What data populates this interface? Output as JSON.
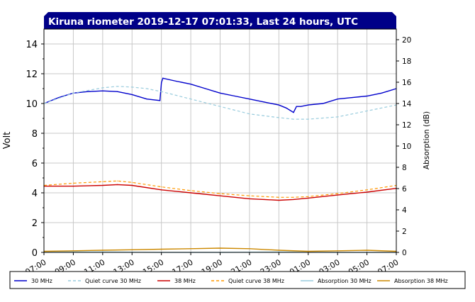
{
  "chart_data": {
    "type": "line",
    "title": "Kiruna riometer 2019-12-17 07:01:33, Last 24 hours, UTC",
    "ylabel_left": "Volt",
    "ylabel_right": "Absorption (dB)",
    "ylim_left": [
      0,
      15
    ],
    "ylim_right": [
      0,
      21
    ],
    "yticks_left": [
      "0",
      "2",
      "4",
      "6",
      "8",
      "10",
      "12",
      "14"
    ],
    "yticks_right": [
      "0",
      "2",
      "4",
      "6",
      "8",
      "10",
      "12",
      "14",
      "16",
      "18",
      "20"
    ],
    "xticks": [
      "07:00",
      "09:00",
      "11:00",
      "13:00",
      "15:00",
      "17:00",
      "19:00",
      "21:00",
      "23:00",
      "01:00",
      "03:00",
      "05:00",
      "07:00"
    ],
    "x_hours_since_start_range": [
      0,
      24
    ],
    "grid": true,
    "legend_position": "bottom",
    "series": [
      {
        "name": "30 MHz",
        "color": "#0000cc",
        "dash": "solid",
        "axis": "left",
        "x": [
          0,
          1,
          2,
          3,
          4,
          5,
          6,
          7,
          7.9,
          8.0,
          8.1,
          9,
          10,
          11,
          12,
          13,
          14,
          15,
          16,
          16.5,
          17,
          17.2,
          17.5,
          18,
          19,
          20,
          21,
          22,
          23,
          24
        ],
        "y": [
          10.0,
          10.4,
          10.7,
          10.8,
          10.85,
          10.8,
          10.6,
          10.3,
          10.2,
          11.4,
          11.7,
          11.5,
          11.3,
          11.0,
          10.7,
          10.5,
          10.3,
          10.1,
          9.9,
          9.7,
          9.4,
          9.8,
          9.8,
          9.9,
          10.0,
          10.3,
          10.4,
          10.5,
          10.7,
          11.0
        ]
      },
      {
        "name": "Quiet curve 30 MHz",
        "color": "#99ccdd",
        "dash": "dashed",
        "axis": "left",
        "x": [
          0,
          2,
          4,
          5,
          6,
          7,
          8,
          10,
          12,
          14,
          16,
          17,
          18,
          20,
          22,
          24
        ],
        "y": [
          10.0,
          10.7,
          11.05,
          11.15,
          11.1,
          11.0,
          10.8,
          10.3,
          9.8,
          9.3,
          9.05,
          8.95,
          8.95,
          9.1,
          9.5,
          9.9
        ]
      },
      {
        "name": "38 MHz",
        "color": "#cc0000",
        "dash": "solid",
        "axis": "left",
        "x": [
          0,
          2,
          4,
          5,
          6,
          8,
          10,
          12,
          14,
          15,
          16,
          17,
          18,
          20,
          22,
          24
        ],
        "y": [
          4.45,
          4.45,
          4.5,
          4.55,
          4.5,
          4.2,
          4.0,
          3.8,
          3.6,
          3.55,
          3.5,
          3.55,
          3.65,
          3.85,
          4.05,
          4.3
        ]
      },
      {
        "name": "Quiet curve 38 MHz",
        "color": "#ff9900",
        "dash": "dashed",
        "axis": "left",
        "x": [
          0,
          2,
          4,
          5,
          6,
          8,
          10,
          12,
          14,
          16,
          17,
          18,
          20,
          22,
          24
        ],
        "y": [
          4.5,
          4.65,
          4.75,
          4.8,
          4.7,
          4.4,
          4.15,
          3.95,
          3.8,
          3.7,
          3.7,
          3.75,
          3.95,
          4.2,
          4.5
        ]
      },
      {
        "name": "Absorption 30 MHz",
        "color": "#99ccdd",
        "dash": "solid",
        "axis": "right",
        "x": [
          0,
          4,
          8,
          12,
          16,
          20,
          24
        ],
        "y": [
          0.05,
          0.05,
          0.0,
          0.0,
          0.05,
          0.0,
          0.0
        ]
      },
      {
        "name": "Absorption 38 MHz",
        "color": "#cc8800",
        "dash": "solid",
        "axis": "right",
        "x": [
          0,
          2,
          4,
          6,
          8,
          10,
          12,
          14,
          16,
          18,
          20,
          22,
          24
        ],
        "y": [
          0.1,
          0.15,
          0.2,
          0.25,
          0.3,
          0.35,
          0.4,
          0.35,
          0.2,
          0.1,
          0.15,
          0.2,
          0.1
        ]
      }
    ]
  }
}
